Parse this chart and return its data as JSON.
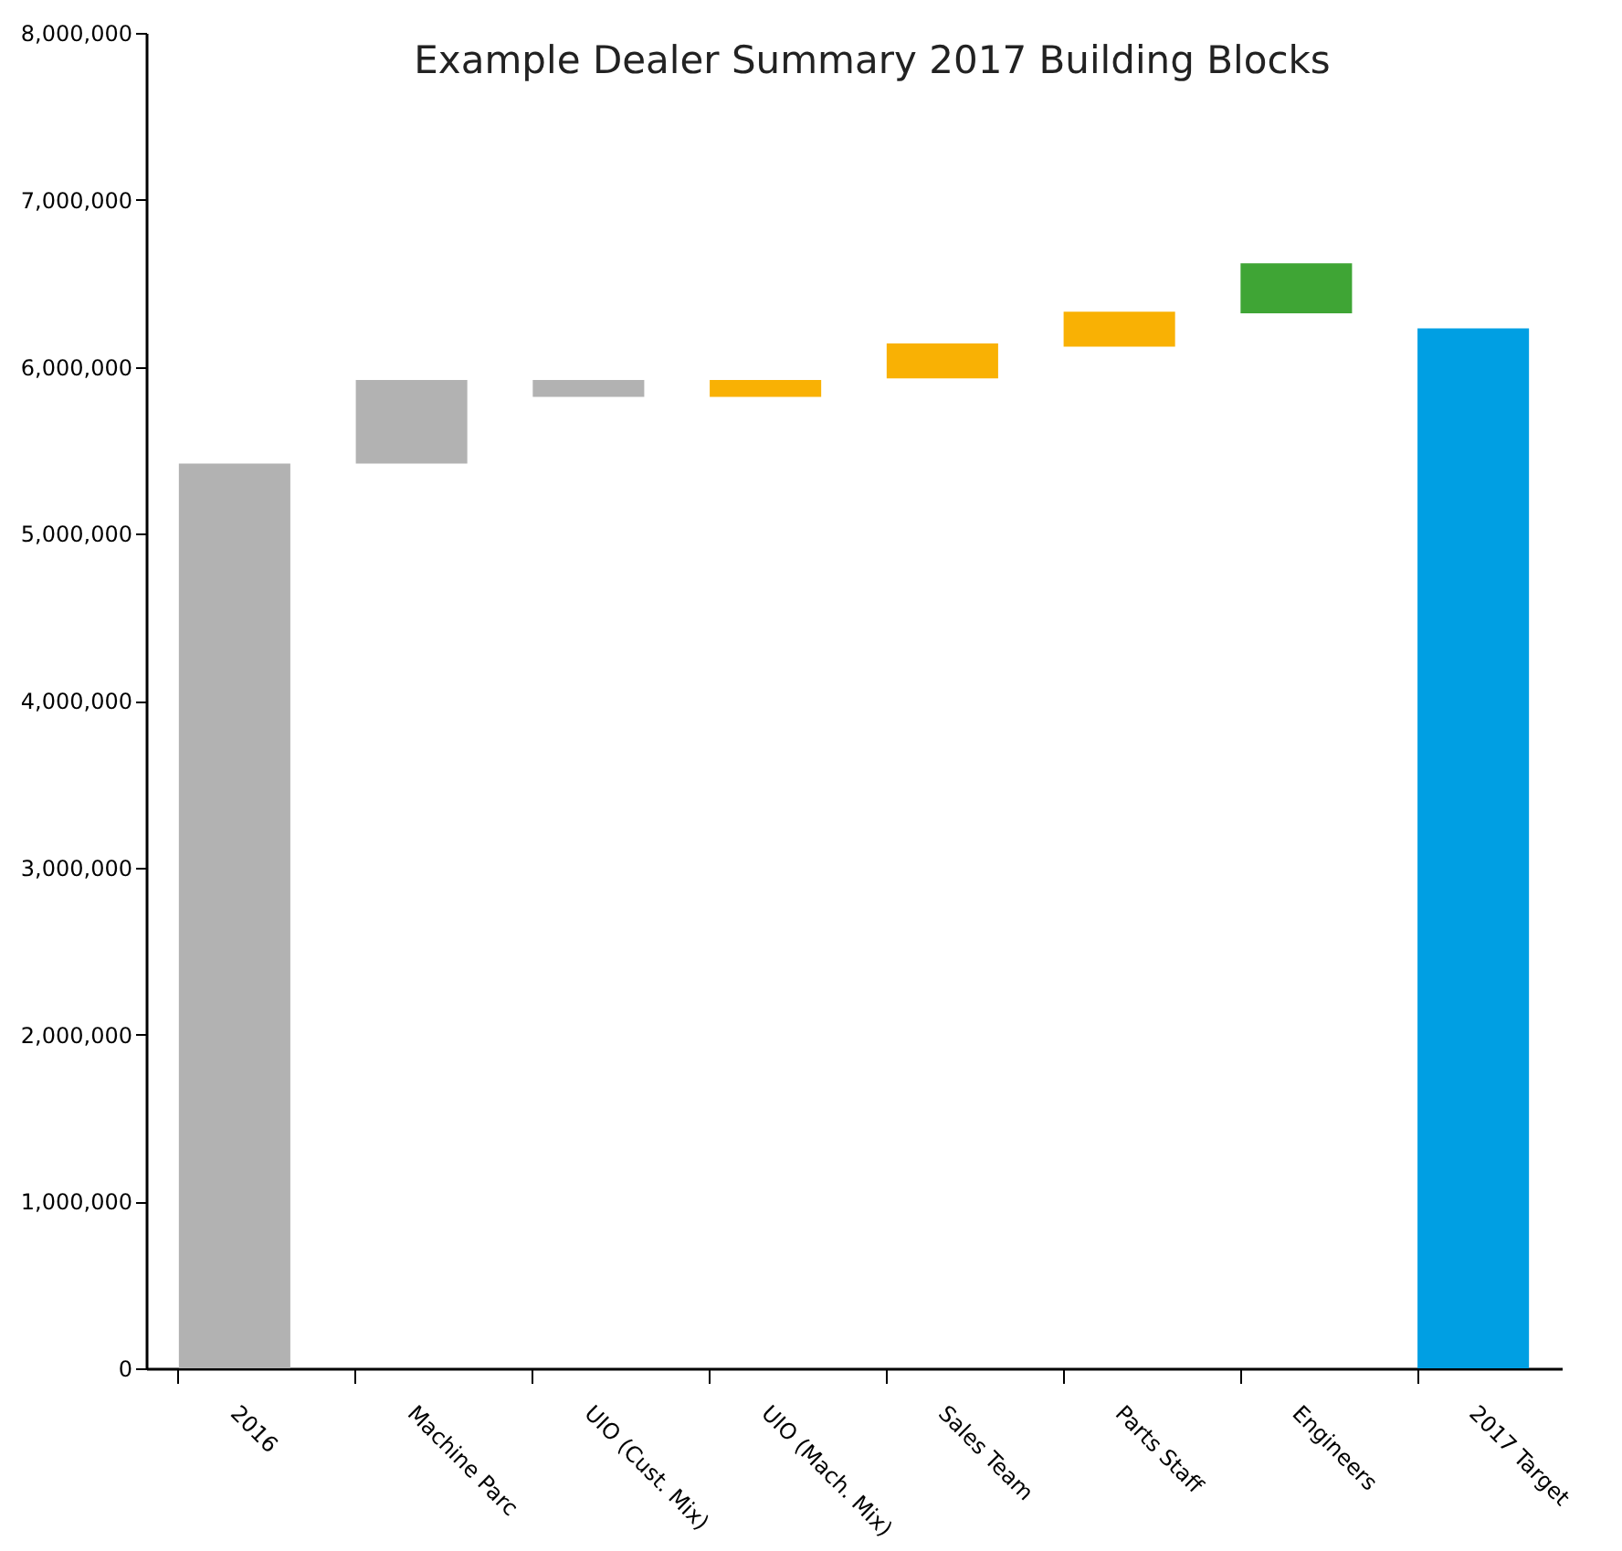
{
  "chart_data": {
    "type": "bar",
    "title": "Example Dealer Summary 2017 Building Blocks",
    "categories": [
      "2016",
      "Machine Parc",
      "UIO (Cust. Mix)",
      "UIO (Mach. Mix)",
      "Sales Team",
      "Parts Staff",
      "Engineers",
      "2017 Target"
    ],
    "values": [
      5420000,
      500000,
      100000,
      100000,
      210000,
      210000,
      300000,
      6230000
    ],
    "base": [
      0,
      5420000,
      5820000,
      5820000,
      5930000,
      6120000,
      6320000,
      0
    ],
    "colors": [
      "#b2b2b2",
      "#b2b2b2",
      "#b2b2b2",
      "#f9b104",
      "#f9b104",
      "#f9b104",
      "#3fa535",
      "#009fe3"
    ],
    "ylim": [
      0,
      8000000
    ],
    "yticks": [
      0,
      {
        "value": 1000000,
        "label": "1,000,000"
      },
      {
        "value": 2000000,
        "label": "2,000,000"
      },
      {
        "value": 3000000,
        "label": "3,000,000"
      },
      {
        "value": 4000000,
        "label": "4,000,000"
      },
      {
        "value": 5000000,
        "label": "5,000,000"
      },
      {
        "value": 6000000,
        "label": "6,000,000"
      },
      {
        "value": 7000000,
        "label": "7,000,000"
      },
      {
        "value": 8000000,
        "label": "8,000,000"
      }
    ],
    "grid": false,
    "legend": false
  }
}
